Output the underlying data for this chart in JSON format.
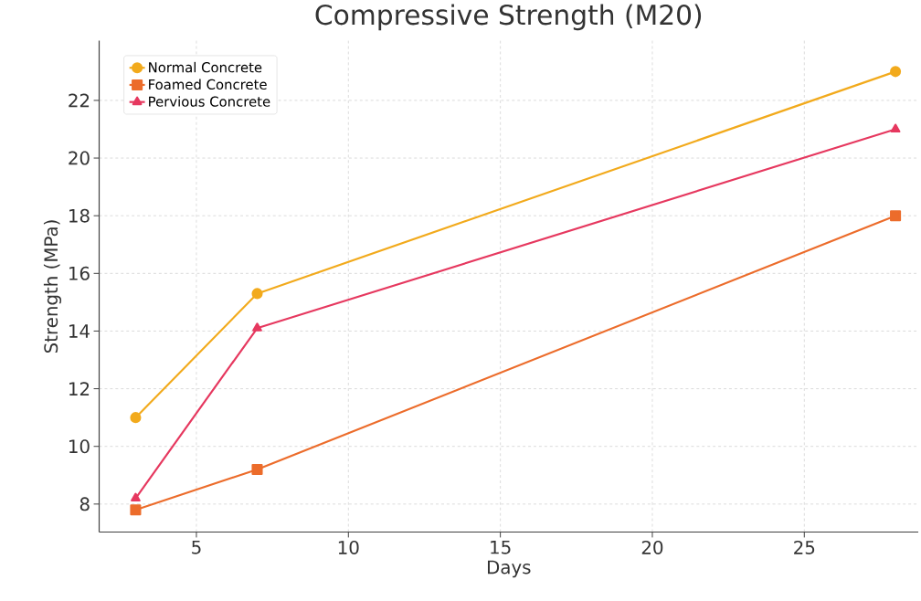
{
  "chart_data": {
    "type": "line",
    "title": "Compressive Strength (M20)",
    "xlabel": "Days",
    "ylabel": "Strength (MPa)",
    "x": [
      3,
      7,
      28
    ],
    "series": [
      {
        "name": "Normal Concrete",
        "color": "#f2aa1c",
        "values": [
          11,
          15.3,
          23
        ],
        "marker": "circle"
      },
      {
        "name": "Foamed Concrete",
        "color": "#ec6c2b",
        "values": [
          7.8,
          9.2,
          18
        ],
        "marker": "square"
      },
      {
        "name": "Pervious Concrete",
        "color": "#e6385f",
        "values": [
          8.2,
          14.1,
          21
        ],
        "marker": "triangle"
      }
    ],
    "xlim": [
      1.8,
      28.75
    ],
    "ylim": [
      7.03,
      24.07
    ],
    "xticks": [
      5,
      10,
      15,
      20,
      25
    ],
    "yticks": [
      8,
      10,
      12,
      14,
      16,
      18,
      20,
      22
    ],
    "grid": true,
    "legend": "top left",
    "line_style": "solid"
  }
}
